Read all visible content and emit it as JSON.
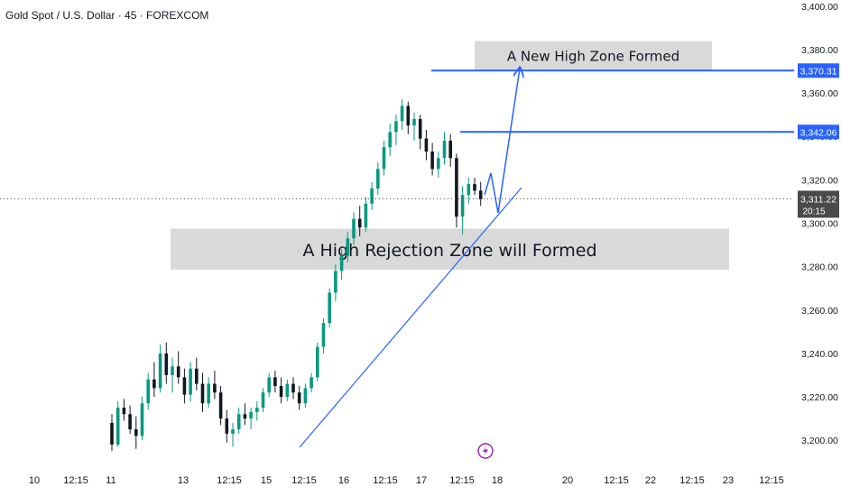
{
  "header": {
    "symbol_title": "Gold Spot / U.S. Dollar · 45 · FOREXCOM"
  },
  "colors": {
    "up": "#089981",
    "down": "#131722",
    "accent": "#2962ff",
    "zone": "#d9d9d9",
    "axis_text": "#131722",
    "current_tag": "#4a4a4a"
  },
  "chart_data": {
    "type": "candlestick",
    "y_axis": {
      "range": [
        3193,
        3402
      ],
      "ticks": [
        3200,
        3220,
        3240,
        3260,
        3280,
        3300,
        3320,
        3340,
        3360,
        3380,
        3400
      ],
      "tick_labels": [
        "3,200.00",
        "3,220.00",
        "3,240.00",
        "3,260.00",
        "3,280.00",
        "3,300.00",
        "3,320.00",
        "3,340.00",
        "3,360.00",
        "3,380.00",
        "3,400.00"
      ]
    },
    "x_axis": {
      "tick_labels": [
        "10",
        "12:15",
        "11",
        "13",
        "12:15",
        "15",
        "12:15",
        "16",
        "12:15",
        "17",
        "12:15",
        "18",
        "20",
        "12:15",
        "22",
        "12:15",
        "23",
        "12:15"
      ]
    },
    "price_levels": [
      {
        "label": "3,370.31",
        "value": 3370.31
      },
      {
        "label": "3,342.06",
        "value": 3342.06
      }
    ],
    "current_price": {
      "label": "3,311.22",
      "countdown": "20:15",
      "value": 3311.22
    },
    "zones": [
      {
        "label": "A New High Zone Formed",
        "y_low": 3370.6,
        "y_high": 3383.9
      },
      {
        "label": "A High Rejection Zone will Formed",
        "y_low": 3278.6,
        "y_high": 3297.5
      }
    ],
    "candles": [
      [
        3208,
        3212,
        3195,
        3198
      ],
      [
        3198,
        3218,
        3197,
        3215
      ],
      [
        3215,
        3219,
        3209,
        3212
      ],
      [
        3212,
        3216,
        3203,
        3205
      ],
      [
        3205,
        3211,
        3196,
        3202
      ],
      [
        3202,
        3220,
        3200,
        3217
      ],
      [
        3217,
        3231,
        3214,
        3228
      ],
      [
        3228,
        3236,
        3220,
        3224
      ],
      [
        3224,
        3244,
        3222,
        3240
      ],
      [
        3240,
        3245,
        3226,
        3230
      ],
      [
        3230,
        3238,
        3222,
        3234
      ],
      [
        3234,
        3241,
        3226,
        3229
      ],
      [
        3229,
        3233,
        3217,
        3221
      ],
      [
        3221,
        3236,
        3218,
        3233
      ],
      [
        3233,
        3238,
        3223,
        3226
      ],
      [
        3226,
        3231,
        3213,
        3217
      ],
      [
        3217,
        3229,
        3215,
        3226
      ],
      [
        3226,
        3232,
        3219,
        3222
      ],
      [
        3222,
        3225,
        3207,
        3210
      ],
      [
        3210,
        3214,
        3199,
        3203
      ],
      [
        3203,
        3208,
        3197,
        3205
      ],
      [
        3205,
        3215,
        3203,
        3212
      ],
      [
        3212,
        3217,
        3207,
        3210
      ],
      [
        3210,
        3215,
        3205,
        3213
      ],
      [
        3213,
        3218,
        3209,
        3215
      ],
      [
        3215,
        3224,
        3213,
        3222
      ],
      [
        3222,
        3231,
        3220,
        3229
      ],
      [
        3229,
        3232,
        3222,
        3225
      ],
      [
        3225,
        3229,
        3217,
        3220
      ],
      [
        3220,
        3228,
        3218,
        3226
      ],
      [
        3226,
        3229,
        3219,
        3222
      ],
      [
        3222,
        3225,
        3214,
        3217
      ],
      [
        3217,
        3226,
        3215,
        3224
      ],
      [
        3224,
        3231,
        3222,
        3229
      ],
      [
        3229,
        3245,
        3227,
        3243
      ],
      [
        3243,
        3256,
        3240,
        3254
      ],
      [
        3254,
        3270,
        3252,
        3268
      ],
      [
        3268,
        3281,
        3264,
        3278
      ],
      [
        3278,
        3288,
        3274,
        3285
      ],
      [
        3285,
        3296,
        3282,
        3293
      ],
      [
        3293,
        3305,
        3290,
        3302
      ],
      [
        3302,
        3308,
        3294,
        3298
      ],
      [
        3298,
        3312,
        3296,
        3309
      ],
      [
        3309,
        3319,
        3306,
        3316
      ],
      [
        3316,
        3328,
        3313,
        3325
      ],
      [
        3325,
        3338,
        3322,
        3335
      ],
      [
        3335,
        3346,
        3331,
        3342
      ],
      [
        3342,
        3350,
        3336,
        3347
      ],
      [
        3347,
        3357,
        3343,
        3354
      ],
      [
        3354,
        3356,
        3341,
        3345
      ],
      [
        3345,
        3351,
        3338,
        3348
      ],
      [
        3348,
        3350,
        3334,
        3339
      ],
      [
        3339,
        3343,
        3329,
        3333
      ],
      [
        3333,
        3337,
        3322,
        3325
      ],
      [
        3325,
        3333,
        3321,
        3330
      ],
      [
        3330,
        3342,
        3327,
        3338
      ],
      [
        3338,
        3341,
        3326,
        3330
      ],
      [
        3330,
        3332,
        3298,
        3303
      ],
      [
        3303,
        3317,
        3295,
        3313
      ],
      [
        3313,
        3321,
        3309,
        3318
      ],
      [
        3318,
        3321,
        3313,
        3315
      ],
      [
        3315,
        3319,
        3308,
        3311
      ]
    ]
  }
}
